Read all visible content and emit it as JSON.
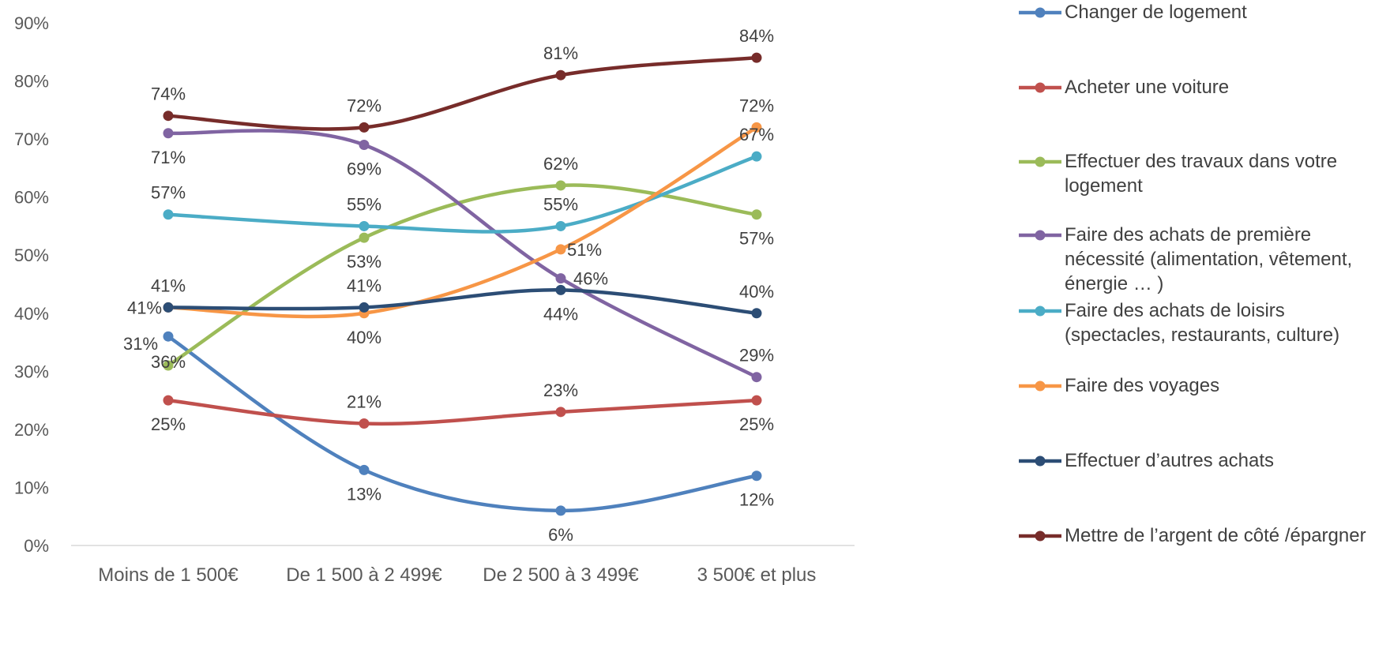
{
  "chart_data": {
    "type": "line",
    "categories": [
      "Moins de 1 500€",
      "De 1 500 à 2 499€",
      "De 2 500 à 3 499€",
      "3 500€ et plus"
    ],
    "ylim": [
      0,
      90
    ],
    "y_ticks": [
      "0%",
      "10%",
      "20%",
      "30%",
      "40%",
      "50%",
      "60%",
      "70%",
      "80%",
      "90%"
    ],
    "xlabel": "",
    "ylabel": "",
    "grid": false,
    "legend_position": "right",
    "smooth": true,
    "series": [
      {
        "name": "Changer de logement",
        "color": "#4f81bd",
        "marker": true,
        "values": [
          36,
          13,
          6,
          12
        ],
        "labels": [
          "36%",
          "13%",
          "6%",
          "12%"
        ]
      },
      {
        "name": "Acheter une voiture",
        "color": "#c0504d",
        "marker": true,
        "values": [
          25,
          21,
          23,
          25
        ],
        "labels": [
          "25%",
          "21%",
          "23%",
          "25%"
        ]
      },
      {
        "name": "Effectuer des travaux dans votre logement",
        "color": "#9bbb59",
        "marker": true,
        "values": [
          31,
          53,
          62,
          57
        ],
        "labels": [
          "31%",
          "53%",
          "62%",
          "57%"
        ]
      },
      {
        "name": "Faire des achats de première nécessité (alimentation, vêtement, énergie … )",
        "color": "#8064a2",
        "marker": true,
        "values": [
          71,
          69,
          46,
          29
        ],
        "labels": [
          "71%",
          "69%",
          "46%",
          "29%"
        ]
      },
      {
        "name": "Faire des achats de loisirs (spectacles, restaurants, culture)",
        "color": "#4bacc6",
        "marker": true,
        "values": [
          57,
          55,
          55,
          67
        ],
        "labels": [
          "57%",
          "55%",
          "55%",
          "67%"
        ]
      },
      {
        "name": "Faire des voyages",
        "color": "#f79646",
        "marker": true,
        "values": [
          41,
          40,
          51,
          72
        ],
        "labels": [
          "41%",
          "40%",
          "51%",
          "72%"
        ]
      },
      {
        "name": "Effectuer d’autres achats",
        "color": "#2c4d75",
        "marker": false,
        "values": [
          41,
          41,
          44,
          40
        ],
        "labels": [
          "41%",
          "41%",
          "44%",
          "40%"
        ]
      },
      {
        "name": "Mettre de l’argent de côté /épargner",
        "color": "#772c2a",
        "marker": true,
        "values": [
          74,
          72,
          81,
          84
        ],
        "labels": [
          "74%",
          "72%",
          "81%",
          "84%"
        ]
      }
    ]
  }
}
